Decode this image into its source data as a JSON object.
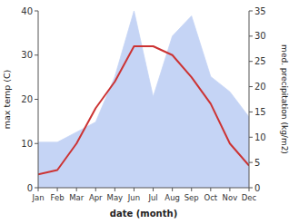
{
  "chart_data": {
    "type": "line",
    "categories": [
      "Jan",
      "Feb",
      "Mar",
      "Apr",
      "May",
      "Jun",
      "Jul",
      "Aug",
      "Sep",
      "Oct",
      "Nov",
      "Dec"
    ],
    "series": [
      {
        "type": "area",
        "axis": "y2",
        "color": "#c5d4f5",
        "values": [
          9,
          9,
          11,
          13,
          22,
          35,
          18,
          30,
          34,
          22,
          19,
          14
        ]
      },
      {
        "type": "line",
        "color": "#cc3333",
        "values": [
          3,
          4,
          10,
          18,
          24,
          32,
          32,
          30,
          25,
          19,
          10,
          5
        ]
      }
    ],
    "xlabel": "date (month)",
    "ylabel": "max temp (C)",
    "y2label": "med. precipitation (kg/m2)",
    "ylim": [
      0,
      40
    ],
    "yticks": [
      0,
      10,
      20,
      30,
      40
    ],
    "y2lim": [
      0,
      35
    ],
    "y2ticks": [
      0,
      5,
      10,
      15,
      20,
      25,
      30,
      35
    ],
    "grid": false
  }
}
